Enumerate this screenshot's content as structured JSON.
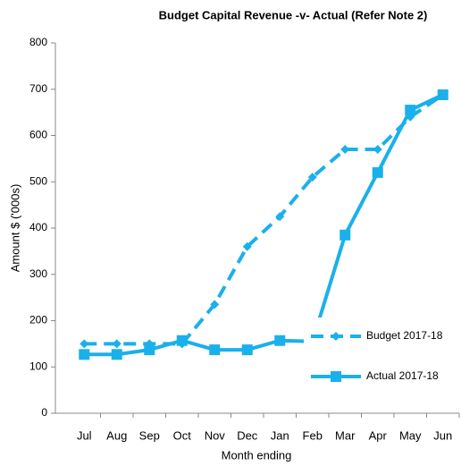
{
  "chart_data": {
    "type": "line",
    "title": "Budget Capital Revenue -v- Actual (Refer Note 2)",
    "x_label": "Month ending",
    "y_label": "Amount $ ('000s)",
    "categories": [
      "Jul",
      "Aug",
      "Sep",
      "Oct",
      "Nov",
      "Dec",
      "Jan",
      "Feb",
      "Mar",
      "Apr",
      "May",
      "Jun"
    ],
    "series": [
      {
        "name": "Budget 2017-18",
        "color": "#1ab0ec",
        "dash": true,
        "marker": "diamond",
        "values": [
          150,
          150,
          150,
          150,
          235,
          360,
          425,
          510,
          570,
          570,
          640,
          688
        ]
      },
      {
        "name": "Actual 2017-18",
        "color": "#1ab0ec",
        "dash": false,
        "marker": "square",
        "values": [
          127,
          127,
          137,
          157,
          137,
          137,
          157,
          155,
          385,
          520,
          655,
          688
        ]
      }
    ],
    "ylim": [
      0,
      800
    ],
    "yticks": [
      0,
      100,
      200,
      300,
      400,
      500,
      600,
      700,
      800
    ],
    "legend": "lower right"
  }
}
